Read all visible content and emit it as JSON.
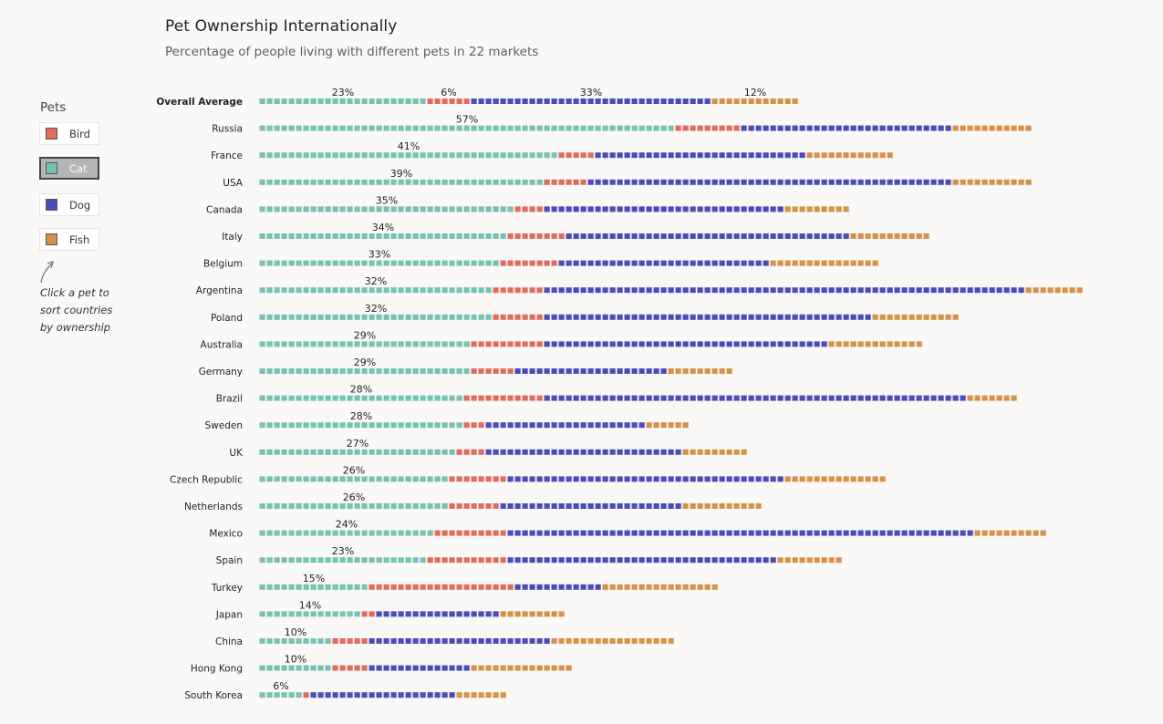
{
  "title": "Pet Ownership Internationally",
  "subtitle": "Percentage of people living with different pets in 22 markets",
  "legend": {
    "title": "Pets",
    "items": [
      {
        "label": "Bird",
        "color": "#e06c5e",
        "active": false
      },
      {
        "label": "Cat",
        "color": "#77c2b3",
        "active": true
      },
      {
        "label": "Dog",
        "color": "#4c4bba",
        "active": false
      },
      {
        "label": "Fish",
        "color": "#d5914a",
        "active": false
      }
    ]
  },
  "hint": "Click a pet to sort countries by ownership",
  "chart_data": {
    "type": "bar",
    "stacked": true,
    "sorted_by": "Cat",
    "series_order": [
      "Cat",
      "Bird",
      "Dog",
      "Fish"
    ],
    "colors": {
      "Cat": "#77c2b3",
      "Bird": "#e06c5e",
      "Dog": "#4c4bba",
      "Fish": "#d5914a"
    },
    "rows": [
      {
        "label": "Overall Average",
        "bold": true,
        "cat": 23,
        "bird": 6,
        "dog": 33,
        "fish": 12,
        "labels": [
          "23%",
          "6%",
          "33%",
          "12%"
        ]
      },
      {
        "label": "Russia",
        "cat": 57,
        "bird": 9,
        "dog": 29,
        "fish": 11,
        "labels": [
          "57%"
        ]
      },
      {
        "label": "France",
        "cat": 41,
        "bird": 5,
        "dog": 29,
        "fish": 12,
        "labels": [
          "41%"
        ]
      },
      {
        "label": "USA",
        "cat": 39,
        "bird": 6,
        "dog": 50,
        "fish": 11,
        "labels": [
          "39%"
        ]
      },
      {
        "label": "Canada",
        "cat": 35,
        "bird": 4,
        "dog": 33,
        "fish": 9,
        "labels": [
          "35%"
        ]
      },
      {
        "label": "Italy",
        "cat": 34,
        "bird": 8,
        "dog": 39,
        "fish": 11,
        "labels": [
          "34%"
        ]
      },
      {
        "label": "Belgium",
        "cat": 33,
        "bird": 8,
        "dog": 29,
        "fish": 15,
        "labels": [
          "33%"
        ]
      },
      {
        "label": "Argentina",
        "cat": 32,
        "bird": 7,
        "dog": 66,
        "fish": 8,
        "labels": [
          "32%"
        ]
      },
      {
        "label": "Poland",
        "cat": 32,
        "bird": 7,
        "dog": 45,
        "fish": 12,
        "labels": [
          "32%"
        ]
      },
      {
        "label": "Australia",
        "cat": 29,
        "bird": 10,
        "dog": 39,
        "fish": 13,
        "labels": [
          "29%"
        ]
      },
      {
        "label": "Germany",
        "cat": 29,
        "bird": 6,
        "dog": 21,
        "fish": 9,
        "labels": [
          "29%"
        ]
      },
      {
        "label": "Brazil",
        "cat": 28,
        "bird": 11,
        "dog": 58,
        "fish": 7,
        "labels": [
          "28%"
        ]
      },
      {
        "label": "Sweden",
        "cat": 28,
        "bird": 3,
        "dog": 22,
        "fish": 6,
        "labels": [
          "28%"
        ]
      },
      {
        "label": "UK",
        "cat": 27,
        "bird": 4,
        "dog": 27,
        "fish": 9,
        "labels": [
          "27%"
        ]
      },
      {
        "label": "Czech Republic",
        "cat": 26,
        "bird": 8,
        "dog": 38,
        "fish": 14,
        "labels": [
          "26%"
        ]
      },
      {
        "label": "Netherlands",
        "cat": 26,
        "bird": 7,
        "dog": 25,
        "fish": 11,
        "labels": [
          "26%"
        ]
      },
      {
        "label": "Mexico",
        "cat": 24,
        "bird": 10,
        "dog": 64,
        "fish": 10,
        "labels": [
          "24%"
        ]
      },
      {
        "label": "Spain",
        "cat": 23,
        "bird": 11,
        "dog": 37,
        "fish": 9,
        "labels": [
          "23%"
        ]
      },
      {
        "label": "Turkey",
        "cat": 15,
        "bird": 20,
        "dog": 12,
        "fish": 16,
        "labels": [
          "15%"
        ]
      },
      {
        "label": "Japan",
        "cat": 14,
        "bird": 2,
        "dog": 17,
        "fish": 9,
        "labels": [
          "14%"
        ]
      },
      {
        "label": "China",
        "cat": 10,
        "bird": 5,
        "dog": 25,
        "fish": 17,
        "labels": [
          "10%"
        ]
      },
      {
        "label": "Hong Kong",
        "cat": 10,
        "bird": 5,
        "dog": 14,
        "fish": 14,
        "labels": [
          "10%"
        ]
      },
      {
        "label": "South Korea",
        "cat": 6,
        "bird": 1,
        "dog": 20,
        "fish": 7,
        "labels": [
          "6%"
        ]
      }
    ]
  }
}
